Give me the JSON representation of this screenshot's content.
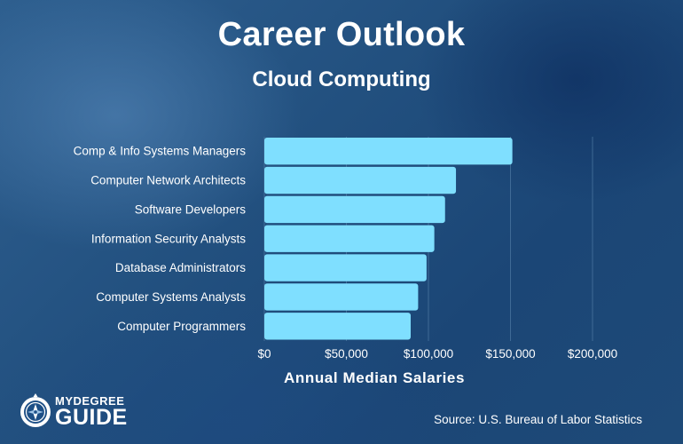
{
  "header": {
    "title": "Career Outlook",
    "subtitle": "Cloud Computing"
  },
  "colors": {
    "bar": "#7fdfff",
    "grid": "#4f7aa3",
    "background": "#22507f"
  },
  "chart_data": {
    "type": "bar",
    "orientation": "horizontal",
    "categories": [
      "Comp & Info Systems Managers",
      "Computer Network Architects",
      "Software Developers",
      "Information Security Analysts",
      "Database Administrators",
      "Computer Systems Analysts",
      "Computer Programmers"
    ],
    "values": [
      151150,
      116780,
      110140,
      103590,
      98860,
      93730,
      89190
    ],
    "xlabel": "Annual Median Salaries",
    "xlim": [
      0,
      200000
    ],
    "x_ticks": [
      0,
      50000,
      100000,
      150000,
      200000
    ],
    "x_tick_labels": [
      "$0",
      "$50,000",
      "$100,000",
      "$150,000",
      "$200,000"
    ],
    "grid": true,
    "legend": "none"
  },
  "logo": {
    "line1": "MYDEGREE",
    "line2": "GUIDE",
    "icon": "compass-icon"
  },
  "footer": {
    "source": "Source: U.S. Bureau of Labor Statistics"
  }
}
